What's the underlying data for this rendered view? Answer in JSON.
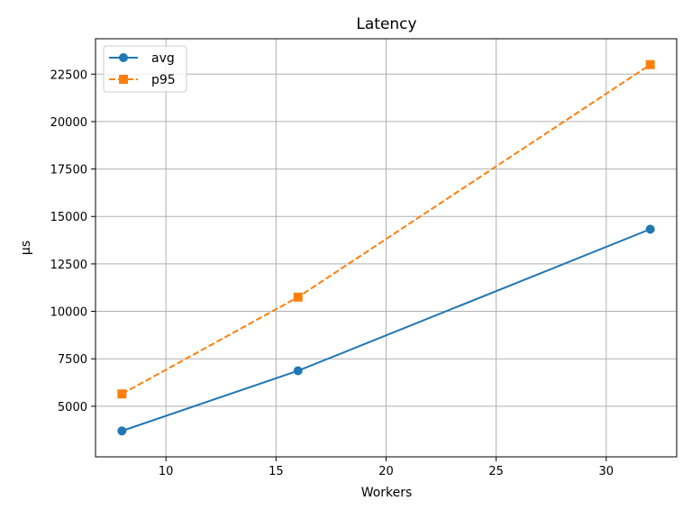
{
  "chart_data": {
    "type": "line",
    "title": "Latency",
    "xlabel": "Workers",
    "ylabel": "µs",
    "x": [
      8,
      16,
      32
    ],
    "series": [
      {
        "name": "avg",
        "values": [
          3700,
          6870,
          14330
        ],
        "color": "#1f77b4",
        "marker": "circle",
        "linestyle": "solid"
      },
      {
        "name": "p95",
        "values": [
          5650,
          10750,
          23000
        ],
        "color": "#ff7f0e",
        "marker": "square",
        "linestyle": "dashed"
      }
    ],
    "xlim": [
      6.8,
      33.2
    ],
    "ylim": [
      2335,
      24365
    ],
    "xticks": [
      10,
      15,
      20,
      25,
      30
    ],
    "yticks": [
      5000,
      7500,
      10000,
      12500,
      15000,
      17500,
      20000,
      22500
    ],
    "grid": true,
    "legend_position": "top-left"
  }
}
